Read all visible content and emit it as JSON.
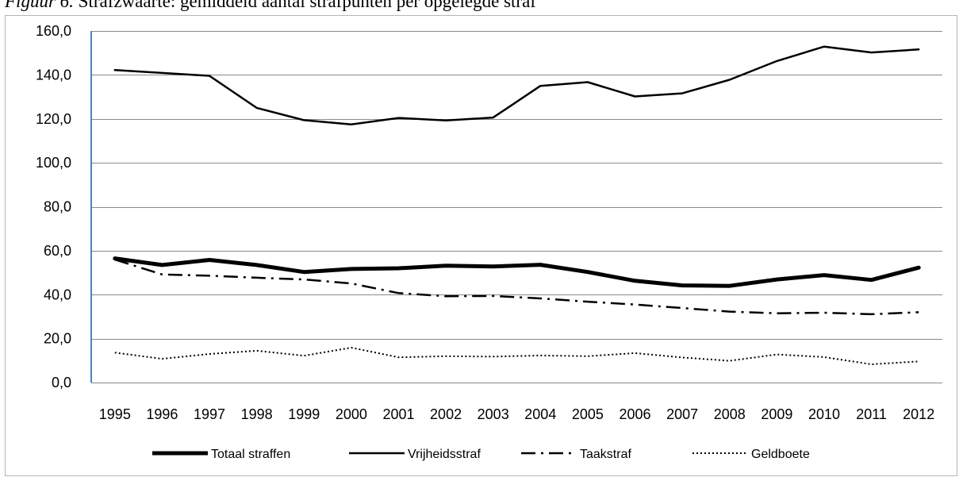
{
  "caption": {
    "label": "Figuur 6.",
    "text": "Strafzwaarte: gemiddeld aantal strafpunten per opgelegde straf"
  },
  "chart_data": {
    "type": "line",
    "title": "",
    "xlabel": "",
    "ylabel": "",
    "ylim": [
      0,
      160
    ],
    "y_ticks": [
      "0,0",
      "20,0",
      "40,0",
      "60,0",
      "80,0",
      "100,0",
      "120,0",
      "140,0",
      "160,0"
    ],
    "grid": true,
    "legend_position": "bottom",
    "categories": [
      "1995",
      "1996",
      "1997",
      "1998",
      "1999",
      "2000",
      "2001",
      "2002",
      "2003",
      "2004",
      "2005",
      "2006",
      "2007",
      "2008",
      "2009",
      "2010",
      "2011",
      "2012"
    ],
    "series": [
      {
        "name": "Totaal straffen",
        "style": "thick-solid",
        "color": "#000000",
        "values": [
          56.5,
          53.5,
          55.8,
          53.5,
          50.3,
          51.7,
          52.0,
          53.2,
          52.8,
          53.6,
          50.3,
          46.3,
          44.2,
          44.0,
          46.9,
          48.9,
          46.7,
          52.3
        ]
      },
      {
        "name": "Vrijheidsstraf",
        "style": "solid",
        "color": "#000000",
        "values": [
          142.2,
          140.9,
          139.6,
          125.0,
          119.4,
          117.5,
          120.4,
          119.3,
          120.6,
          135.0,
          136.7,
          130.2,
          131.6,
          137.8,
          146.3,
          152.9,
          150.2,
          151.6
        ]
      },
      {
        "name": "Taakstraf",
        "style": "dash-dot",
        "color": "#000000",
        "values": [
          56.0,
          49.2,
          48.6,
          47.7,
          46.9,
          45.1,
          40.7,
          39.3,
          39.4,
          38.3,
          36.8,
          35.5,
          33.9,
          32.3,
          31.5,
          31.8,
          31.1,
          32.0
        ]
      },
      {
        "name": "Geldboete",
        "style": "dotted",
        "color": "#000000",
        "values": [
          13.6,
          10.8,
          13.0,
          14.5,
          12.2,
          15.9,
          11.5,
          12.0,
          11.8,
          12.3,
          12.0,
          13.4,
          11.4,
          9.9,
          12.8,
          11.6,
          8.3,
          9.6
        ]
      }
    ]
  }
}
